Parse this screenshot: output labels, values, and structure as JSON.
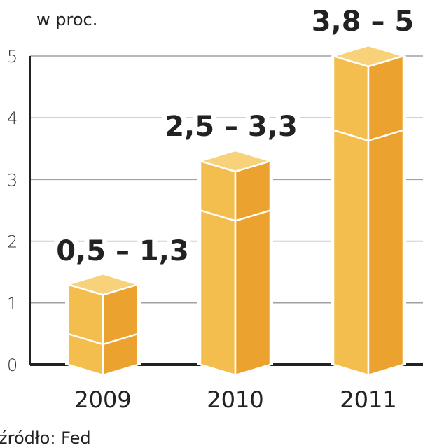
{
  "chart_data": {
    "type": "bar",
    "title": "",
    "unit_label": "w proc.",
    "source": "źródło: Fed",
    "categories": [
      "2009",
      "2010",
      "2011"
    ],
    "series": [
      {
        "name": "low",
        "values": [
          0.5,
          2.5,
          3.8
        ]
      },
      {
        "name": "high",
        "values": [
          1.3,
          3.3,
          5
        ]
      }
    ],
    "data_labels": [
      "0,5 – 1,3",
      "2,5 – 3,3",
      "3,8 – 5"
    ],
    "yticks": [
      "0",
      "1",
      "2",
      "3",
      "4",
      "5"
    ],
    "ylim": [
      0,
      5
    ],
    "grid": true,
    "colors": {
      "left": "#F4BE4E",
      "right": "#EBA22E",
      "top": "#F8D27A",
      "grid": "#a0a0a0",
      "axis": "#222222"
    }
  }
}
